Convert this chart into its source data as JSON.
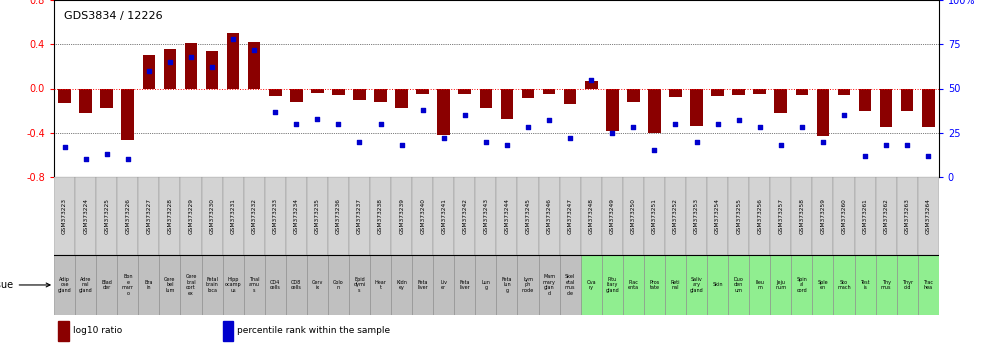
{
  "title": "GDS3834 / 12226",
  "gsm_ids": [
    "GSM373223",
    "GSM373224",
    "GSM373225",
    "GSM373226",
    "GSM373227",
    "GSM373228",
    "GSM373229",
    "GSM373230",
    "GSM373231",
    "GSM373232",
    "GSM373233",
    "GSM373234",
    "GSM373235",
    "GSM373236",
    "GSM373237",
    "GSM373238",
    "GSM373239",
    "GSM373240",
    "GSM373241",
    "GSM373242",
    "GSM373243",
    "GSM373244",
    "GSM373245",
    "GSM373246",
    "GSM373247",
    "GSM373248",
    "GSM373249",
    "GSM373250",
    "GSM373251",
    "GSM373252",
    "GSM373253",
    "GSM373254",
    "GSM373255",
    "GSM373256",
    "GSM373257",
    "GSM373258",
    "GSM373259",
    "GSM373260",
    "GSM373261",
    "GSM373262",
    "GSM373263",
    "GSM373264"
  ],
  "log10_ratio": [
    -0.13,
    -0.22,
    -0.18,
    -0.47,
    0.3,
    0.36,
    0.41,
    0.34,
    0.5,
    0.42,
    -0.07,
    -0.12,
    -0.04,
    -0.06,
    -0.1,
    -0.12,
    -0.18,
    -0.05,
    -0.42,
    -0.05,
    -0.18,
    -0.28,
    -0.09,
    -0.05,
    -0.14,
    0.07,
    -0.38,
    -0.12,
    -0.4,
    -0.08,
    -0.34,
    -0.07,
    -0.06,
    -0.05,
    -0.22,
    -0.06,
    -0.43,
    -0.06,
    -0.2,
    -0.35,
    -0.2,
    -0.35
  ],
  "percentile_rank": [
    17,
    10,
    13,
    10,
    60,
    65,
    68,
    62,
    78,
    72,
    37,
    30,
    33,
    30,
    20,
    30,
    18,
    38,
    22,
    35,
    20,
    18,
    28,
    32,
    22,
    55,
    25,
    28,
    15,
    30,
    20,
    30,
    32,
    28,
    18,
    28,
    20,
    35,
    12,
    18,
    18,
    12
  ],
  "tissues": [
    "Adip\nose\ngland",
    "Adre\nnal\ngland",
    "Blad\nder",
    "Bon\ne\nmarr\no",
    "Bra\nin",
    "Cere\nbel\nlum",
    "Cere\nbral\ncort\nex",
    "Fetal\nbrain\nloca",
    "Hipp\nocamp\nus",
    "Thal\namu\ns",
    "CD4\ncells",
    "CD8\ncells",
    "Cerv\nix",
    "Colo\nn",
    "Epid\ndymi\ns",
    "Hear\nt",
    "Kidn\ney",
    "Feta\nliver",
    "Liv\ner",
    "Feta\nliver",
    "Lun\ng",
    "Feta\nlun\ng",
    "Lym\nph\nnode",
    "Mam\nmary\nglan\nd",
    "Skel\netal\nmus\ncle",
    "Ova\nry",
    "Pitu\nitary\ngland",
    "Plac\nenta",
    "Pros\ntate",
    "Reti\nnal",
    "Saliv\nary\ngland",
    "Skin",
    "Duo\nden\num",
    "Ileu\nm",
    "Jeju\nnum",
    "Spin\nal\ncord",
    "Sple\nen",
    "Sto\nmach",
    "Test\nis",
    "Thy\nmus",
    "Thyr\noid",
    "Trac\nhea"
  ],
  "tissue_colors": [
    "#c0c0c0",
    "#c0c0c0",
    "#c0c0c0",
    "#c0c0c0",
    "#c0c0c0",
    "#c0c0c0",
    "#c0c0c0",
    "#c0c0c0",
    "#c0c0c0",
    "#c0c0c0",
    "#c0c0c0",
    "#c0c0c0",
    "#c0c0c0",
    "#c0c0c0",
    "#c0c0c0",
    "#c0c0c0",
    "#c0c0c0",
    "#c0c0c0",
    "#c0c0c0",
    "#c0c0c0",
    "#c0c0c0",
    "#c0c0c0",
    "#c0c0c0",
    "#c0c0c0",
    "#c0c0c0",
    "#90ee90",
    "#90ee90",
    "#90ee90",
    "#90ee90",
    "#90ee90",
    "#90ee90",
    "#90ee90",
    "#90ee90",
    "#90ee90",
    "#90ee90",
    "#90ee90",
    "#90ee90",
    "#90ee90",
    "#90ee90",
    "#90ee90",
    "#90ee90",
    "#90ee90"
  ],
  "gsm_bg_color": "#d3d3d3",
  "bar_color": "#8B0000",
  "dot_color": "#0000CD",
  "ylim_left": [
    -0.8,
    0.8
  ],
  "ylim_right": [
    0,
    100
  ],
  "yticks_left": [
    -0.8,
    -0.4,
    0.0,
    0.4,
    0.8
  ],
  "yticks_right": [
    0,
    25,
    50,
    75,
    100
  ],
  "hlines": [
    -0.4,
    0.0,
    0.4
  ],
  "legend_bar_label": "log10 ratio",
  "legend_dot_label": "percentile rank within the sample"
}
